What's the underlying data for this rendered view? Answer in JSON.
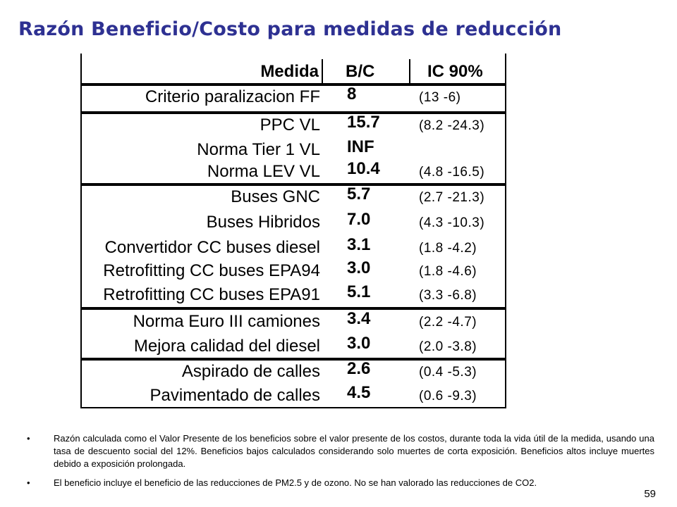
{
  "title": "Razón Beneficio/Costo para medidas de reducción",
  "table": {
    "headers": {
      "medida": "Medida",
      "bc": "B/C",
      "ic": "IC 90%"
    },
    "rows": [
      {
        "medida": "Criterio paralizacion FF",
        "bc": "8",
        "ic": "(13  -6)"
      },
      {
        "medida": "PPC VL",
        "bc": "15.7",
        "ic": "(8.2  -24.3)"
      },
      {
        "medida": "Norma Tier 1 VL",
        "bc": "INF",
        "ic": ""
      },
      {
        "medida": "Norma LEV VL",
        "bc": "10.4",
        "ic": "(4.8  -16.5)"
      },
      {
        "medida": "Buses GNC",
        "bc": "5.7",
        "ic": "(2.7  -21.3)"
      },
      {
        "medida": "Buses Hibridos",
        "bc": "7.0",
        "ic": "(4.3  -10.3)"
      },
      {
        "medida": "Convertidor CC buses diesel",
        "bc": "3.1",
        "ic": "(1.8  -4.2)"
      },
      {
        "medida": "Retrofitting CC buses EPA94",
        "bc": "3.0",
        "ic": "(1.8  -4.6)"
      },
      {
        "medida": "Retrofitting CC buses EPA91",
        "bc": "5.1",
        "ic": "(3.3  -6.8)"
      },
      {
        "medida": "Norma Euro III camiones",
        "bc": "3.4",
        "ic": "(2.2  -4.7)"
      },
      {
        "medida": "Mejora calidad del diesel",
        "bc": "3.0",
        "ic": "(2.0  -3.8)"
      },
      {
        "medida": "Aspirado de calles",
        "bc": "2.6",
        "ic": "(0.4  -5.3)"
      },
      {
        "medida": "Pavimentado de calles",
        "bc": "4.5",
        "ic": "(0.6  -9.3)"
      }
    ]
  },
  "notes": [
    "Razón calculada como el Valor Presente de los beneficios sobre el valor presente de los costos, durante toda la vida útil de la medida, usando una tasa de descuento social del 12%. Beneficios bajos  calculados considerando solo muertes de corta exposición. Beneficios altos incluye  muertes debido a exposición prolongada.",
    "El beneficio incluye el beneficio de las reducciones de PM2.5 y de ozono. No se han valorado las reducciones de CO2."
  ],
  "bullet": "•",
  "page_number": "59"
}
